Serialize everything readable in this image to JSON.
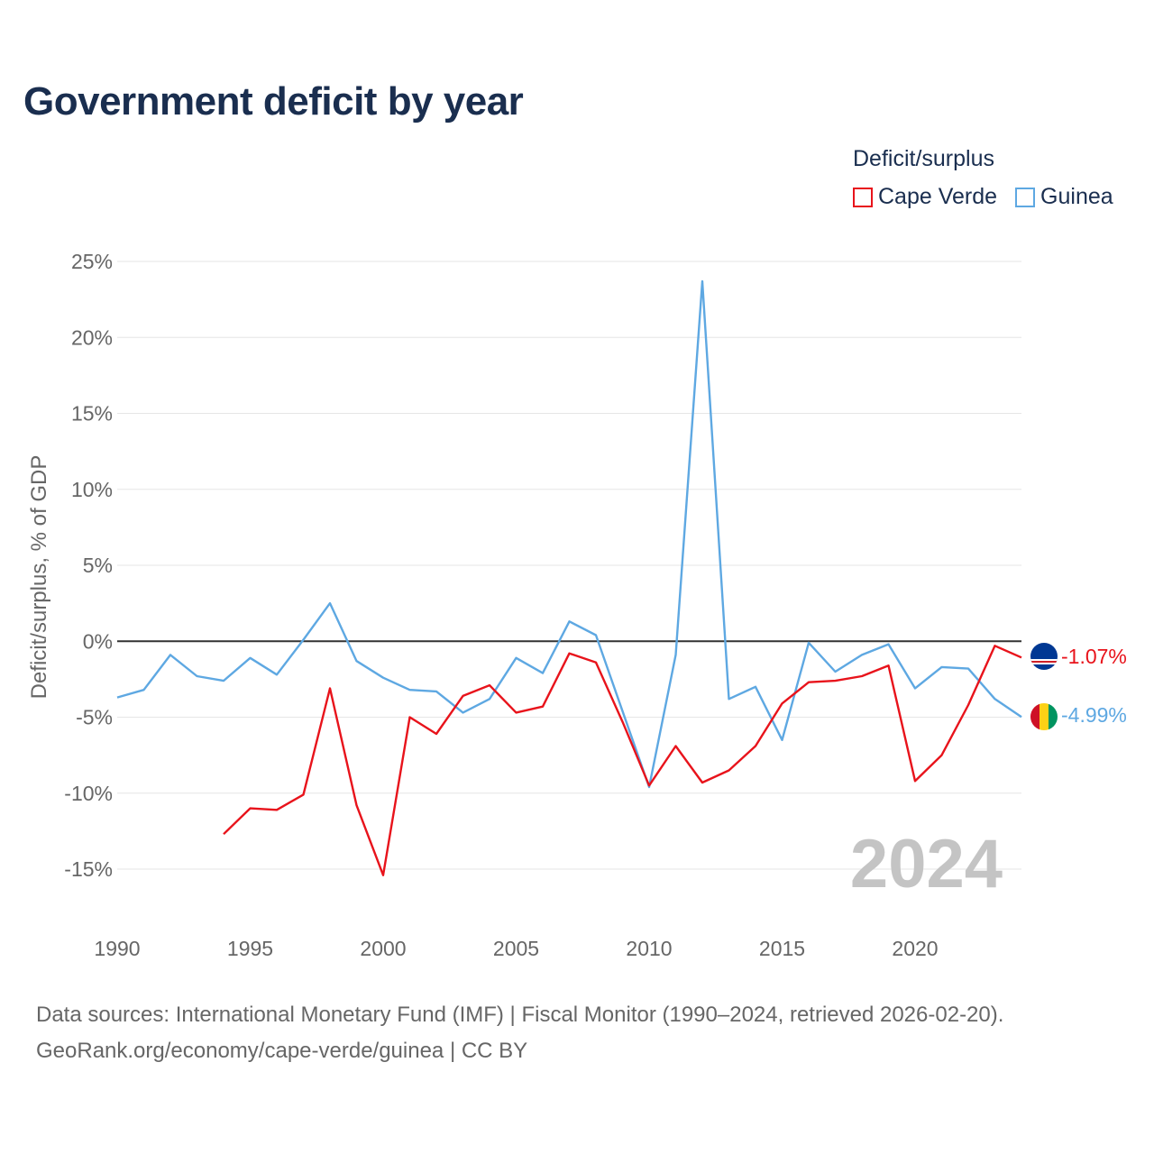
{
  "title": "Government deficit by year",
  "legend": {
    "title": "Deficit/surplus",
    "items": [
      {
        "label": "Cape Verde",
        "color": "#e8131b"
      },
      {
        "label": "Guinea",
        "color": "#5ea8e2"
      }
    ]
  },
  "big_year": "2024",
  "footer": {
    "line1": "Data sources: International Monetary Fund (IMF) | Fiscal Monitor (1990–2024, retrieved 2026-02-20).",
    "line2": "GeoRank.org/economy/cape-verde/guinea | CC BY"
  },
  "chart_data": {
    "type": "line",
    "title": "Government deficit by year",
    "ylabel": "Deficit/surplus, % of GDP",
    "xlabel": "",
    "xlim": [
      1990,
      2024
    ],
    "ylim": [
      -15,
      25
    ],
    "x_ticks": [
      1990,
      1995,
      2000,
      2005,
      2010,
      2015,
      2020
    ],
    "y_ticks": [
      {
        "value": 25,
        "label": "25%"
      },
      {
        "value": 20,
        "label": "20%"
      },
      {
        "value": 15,
        "label": "15%"
      },
      {
        "value": 10,
        "label": "10%"
      },
      {
        "value": 5,
        "label": "5%"
      },
      {
        "value": 0,
        "label": "0%"
      },
      {
        "value": -5,
        "label": "-5%"
      },
      {
        "value": -10,
        "label": "-10%"
      },
      {
        "value": -15,
        "label": "-15%"
      }
    ],
    "series": [
      {
        "name": "Cape Verde",
        "color": "#e8131b",
        "end_label": "-1.07%",
        "points": [
          [
            1994,
            -12.7
          ],
          [
            1995,
            -11.0
          ],
          [
            1996,
            -11.1
          ],
          [
            1997,
            -10.1
          ],
          [
            1998,
            -3.1
          ],
          [
            1999,
            -10.8
          ],
          [
            2000,
            -15.4
          ],
          [
            2001,
            -5.0
          ],
          [
            2002,
            -6.1
          ],
          [
            2003,
            -3.6
          ],
          [
            2004,
            -2.9
          ],
          [
            2005,
            -4.7
          ],
          [
            2006,
            -4.3
          ],
          [
            2007,
            -0.8
          ],
          [
            2008,
            -1.4
          ],
          [
            2009,
            -5.3
          ],
          [
            2010,
            -9.5
          ],
          [
            2011,
            -6.9
          ],
          [
            2012,
            -9.3
          ],
          [
            2013,
            -8.5
          ],
          [
            2014,
            -6.9
          ],
          [
            2015,
            -4.1
          ],
          [
            2016,
            -2.7
          ],
          [
            2017,
            -2.6
          ],
          [
            2018,
            -2.3
          ],
          [
            2019,
            -1.6
          ],
          [
            2020,
            -9.2
          ],
          [
            2021,
            -7.5
          ],
          [
            2022,
            -4.2
          ],
          [
            2023,
            -0.3
          ],
          [
            2024,
            -1.07
          ]
        ]
      },
      {
        "name": "Guinea",
        "color": "#5ea8e2",
        "end_label": "-4.99%",
        "points": [
          [
            1990,
            -3.7
          ],
          [
            1991,
            -3.2
          ],
          [
            1992,
            -0.9
          ],
          [
            1993,
            -2.3
          ],
          [
            1994,
            -2.6
          ],
          [
            1995,
            -1.1
          ],
          [
            1996,
            -2.2
          ],
          [
            1997,
            0.1
          ],
          [
            1998,
            2.5
          ],
          [
            1999,
            -1.3
          ],
          [
            2000,
            -2.4
          ],
          [
            2001,
            -3.2
          ],
          [
            2002,
            -3.3
          ],
          [
            2003,
            -4.7
          ],
          [
            2004,
            -3.8
          ],
          [
            2005,
            -1.1
          ],
          [
            2006,
            -2.1
          ],
          [
            2007,
            1.3
          ],
          [
            2008,
            0.4
          ],
          [
            2009,
            -4.6
          ],
          [
            2010,
            -9.6
          ],
          [
            2011,
            -0.9
          ],
          [
            2012,
            23.7
          ],
          [
            2013,
            -3.8
          ],
          [
            2014,
            -3.0
          ],
          [
            2015,
            -6.5
          ],
          [
            2016,
            -0.1
          ],
          [
            2017,
            -2.0
          ],
          [
            2018,
            -0.9
          ],
          [
            2019,
            -0.2
          ],
          [
            2020,
            -3.1
          ],
          [
            2021,
            -1.7
          ],
          [
            2022,
            -1.8
          ],
          [
            2023,
            -3.8
          ],
          [
            2024,
            -4.99
          ]
        ]
      }
    ]
  }
}
